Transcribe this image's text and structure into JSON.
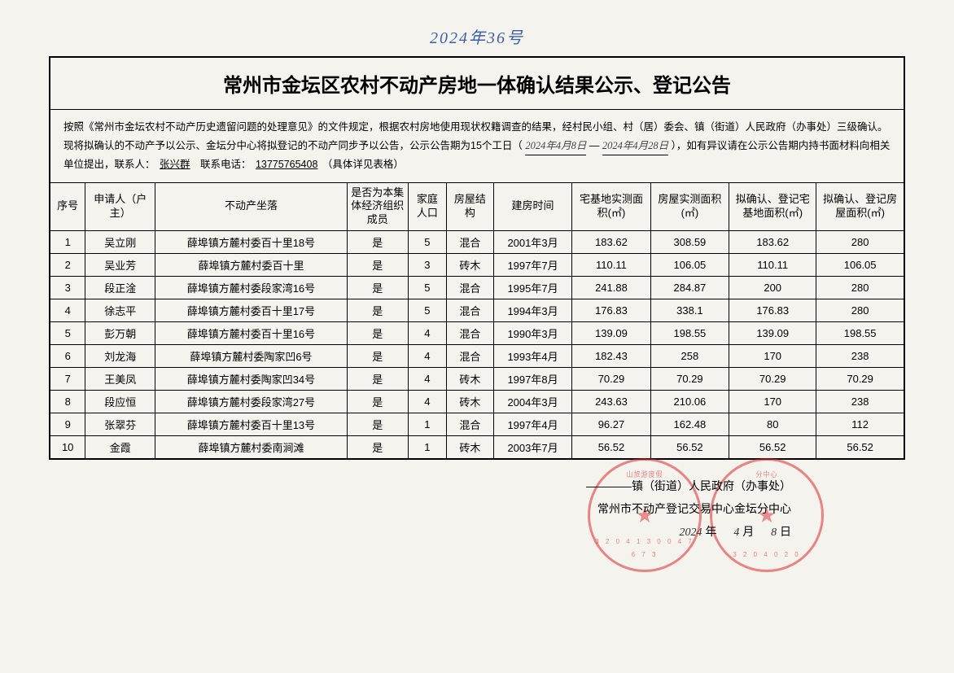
{
  "handwritten_top": "2024年36号",
  "title": "常州市金坛区农村不动产房地一体确认结果公示、登记公告",
  "intro": {
    "part1": "按照《常州市金坛农村不动产历史遗留问题的处理意见》的文件规定，根据农村房地使用现状权籍调查的结果，经村民小组、村（居）委会、镇（街道）人民政府（办事处）三级确认。现将拟确认的不动产予以公示、金坛分中心将拟登记的不动产同步予以公告，公示公告期为15个工日（",
    "date_from": "2024年4月8日",
    "dash": "—",
    "date_to": "2024年4月28日",
    "part2": "），如有异议请在公示公告期内持书面材料向相关单位提出，联系人：",
    "contact_name": "张兴群",
    "part3": "联系电话：",
    "contact_phone": "13775765408",
    "part4": "（具体详见表格）"
  },
  "columns": [
    "序号",
    "申请人（户主）",
    "不动产坐落",
    "是否为本集体经济组织成员",
    "家庭人口",
    "房屋结构",
    "建房时间",
    "宅基地实测面积(㎡)",
    "房屋实测面积(㎡)",
    "拟确认、登记宅基地面积(㎡)",
    "拟确认、登记房屋面积(㎡)"
  ],
  "rows": [
    [
      "1",
      "吴立刚",
      "薛埠镇方麓村委百十里18号",
      "是",
      "5",
      "混合",
      "2001年3月",
      "183.62",
      "308.59",
      "183.62",
      "280"
    ],
    [
      "2",
      "吴业芳",
      "薛埠镇方麓村委百十里",
      "是",
      "3",
      "砖木",
      "1997年7月",
      "110.11",
      "106.05",
      "110.11",
      "106.05"
    ],
    [
      "3",
      "段正淦",
      "薛埠镇方麓村委段家湾16号",
      "是",
      "5",
      "混合",
      "1995年7月",
      "241.88",
      "284.87",
      "200",
      "280"
    ],
    [
      "4",
      "徐志平",
      "薛埠镇方麓村委百十里17号",
      "是",
      "5",
      "混合",
      "1994年3月",
      "176.83",
      "338.1",
      "176.83",
      "280"
    ],
    [
      "5",
      "彭万朝",
      "薛埠镇方麓村委百十里16号",
      "是",
      "4",
      "混合",
      "1990年3月",
      "139.09",
      "198.55",
      "139.09",
      "198.55"
    ],
    [
      "6",
      "刘龙海",
      "薛埠镇方麓村委陶家凹6号",
      "是",
      "4",
      "混合",
      "1993年4月",
      "182.43",
      "258",
      "170",
      "238"
    ],
    [
      "7",
      "王美凤",
      "薛埠镇方麓村委陶家凹34号",
      "是",
      "4",
      "砖木",
      "1997年8月",
      "70.29",
      "70.29",
      "70.29",
      "70.29"
    ],
    [
      "8",
      "段应恒",
      "薛埠镇方麓村委段家湾27号",
      "是",
      "4",
      "砖木",
      "2004年3月",
      "243.63",
      "210.06",
      "170",
      "238"
    ],
    [
      "9",
      "张翠芬",
      "薛埠镇方麓村委百十里13号",
      "是",
      "1",
      "混合",
      "1997年4月",
      "96.27",
      "162.48",
      "80",
      "112"
    ],
    [
      "10",
      "金霞",
      "薛埠镇方麓村委南涧滩",
      "是",
      "1",
      "砖木",
      "2003年7月",
      "56.52",
      "56.52",
      "56.52",
      "56.52"
    ]
  ],
  "signature": {
    "line1_prefix": "————",
    "line1": "镇（街道）人民政府（办事处）",
    "line2": "常州市不动产登记交易中心金坛分中心",
    "date_year": "2024",
    "date_year_label": "年",
    "date_month": "4",
    "date_month_label": "月",
    "date_day": "8",
    "date_day_label": "日"
  },
  "col_widths": [
    "40px",
    "80px",
    "220px",
    "70px",
    "44px",
    "54px",
    "90px",
    "90px",
    "90px",
    "100px",
    "100px"
  ]
}
